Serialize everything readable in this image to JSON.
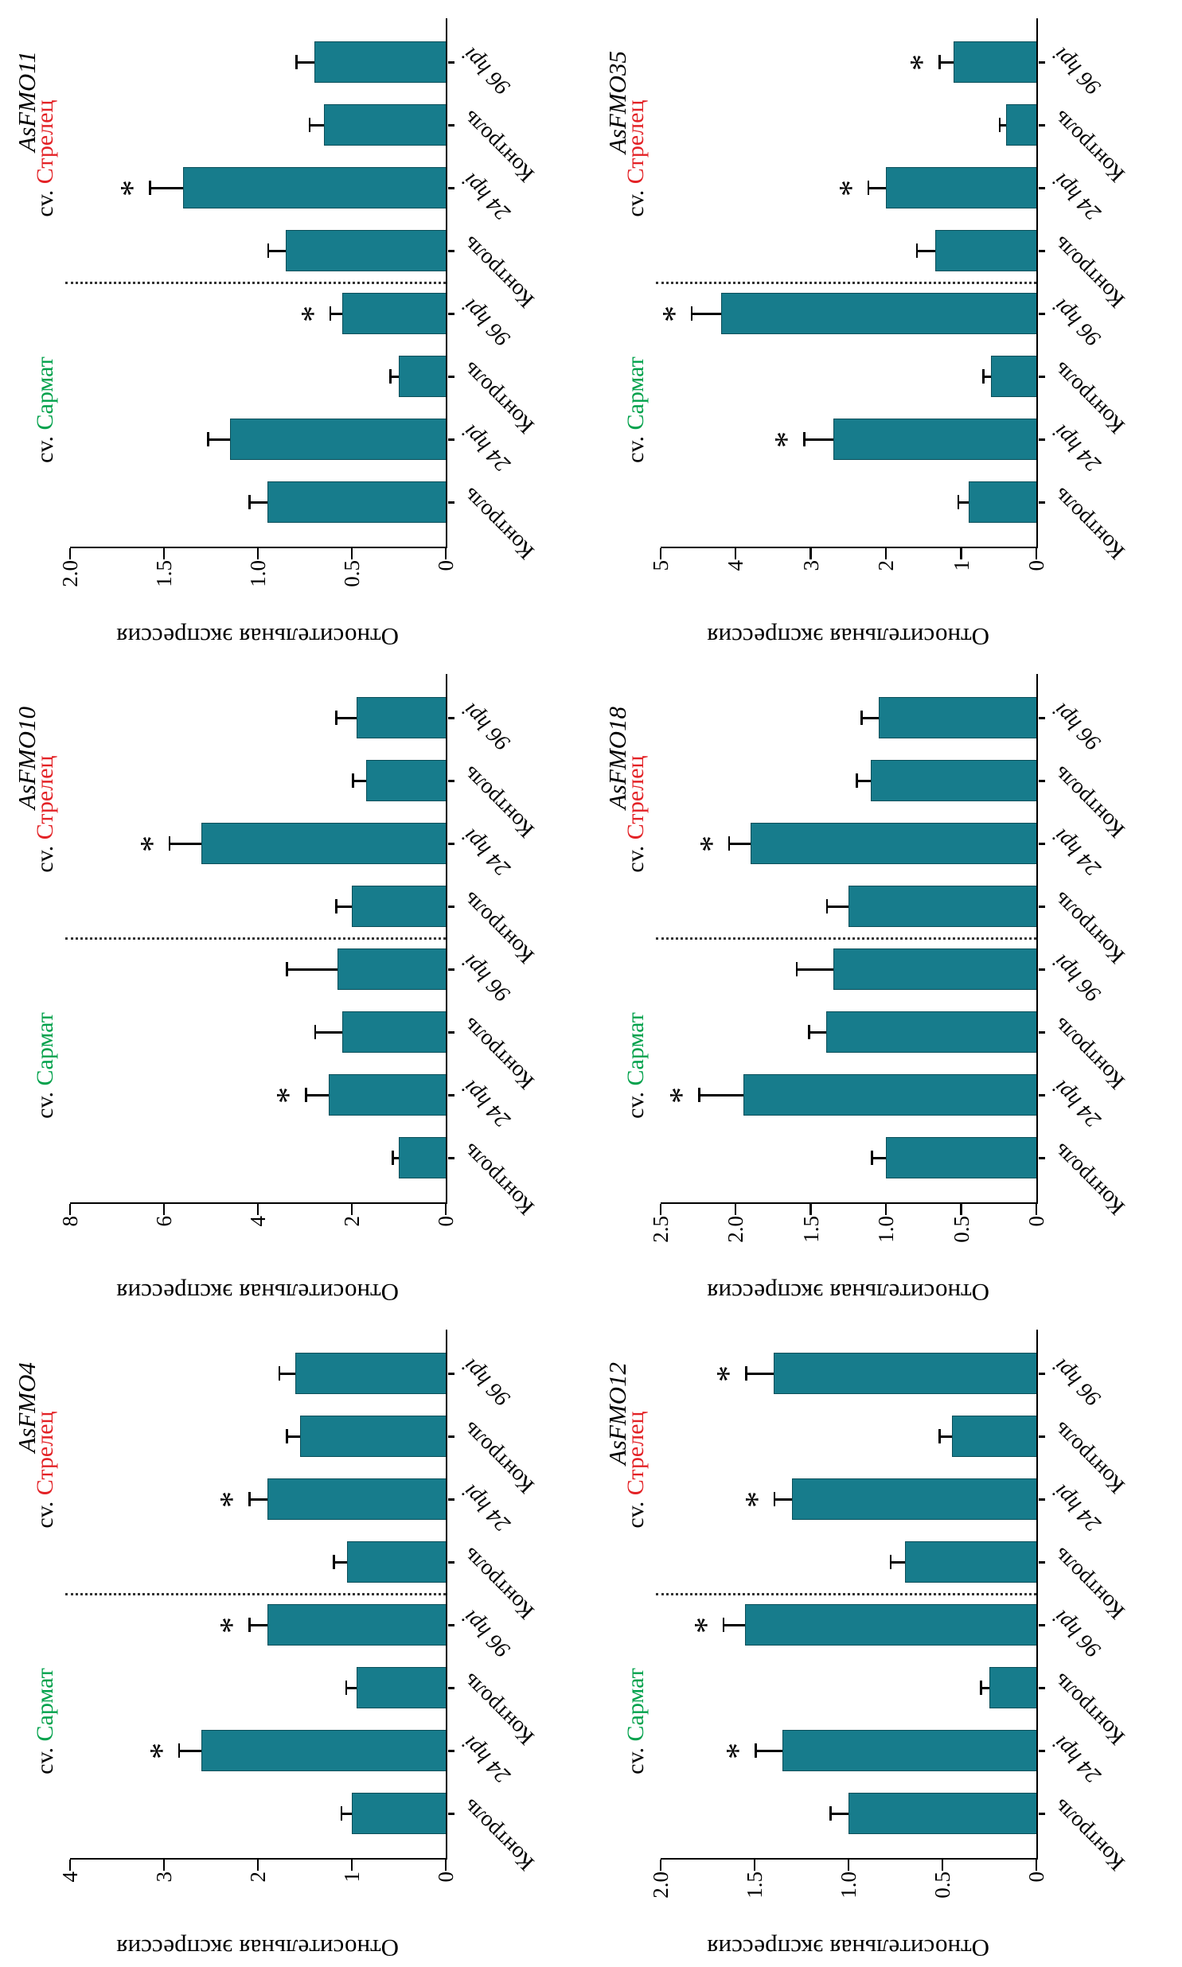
{
  "figure": {
    "sig_marker": "*",
    "bar_color": "#177C8C",
    "bar_border_color": "#0B4F5A",
    "group_label_prefix": "cv. ",
    "cultivar_colors": {
      "Сармат": "#00A14B",
      "Стрелец": "#E32226"
    },
    "y_axis_label": "Относительная экспрессия",
    "category_labels": [
      "Контроль",
      "24 hpi",
      "Контроль",
      "96 hpi"
    ]
  },
  "chart_data": [
    {
      "type": "bar",
      "title": "AsFMO4",
      "ylabel": "Относительная экспрессия",
      "ylim": [
        0,
        4
      ],
      "yticks": [
        "0",
        "1",
        "2",
        "3",
        "4"
      ],
      "legend_position": "above-groups",
      "grid": false,
      "groups": [
        {
          "label": "cv. Сармат",
          "cultivar": "Сармат",
          "label_color": "#00A14B",
          "categories": [
            "Контроль",
            "24 hpi",
            "Контроль",
            "96 hpi"
          ],
          "values": [
            1.0,
            2.6,
            0.95,
            1.9
          ],
          "errors": [
            0.12,
            0.25,
            0.12,
            0.2
          ],
          "significant": [
            false,
            true,
            false,
            true
          ]
        },
        {
          "label": "cv. Стрелец",
          "cultivar": "Стрелец",
          "label_color": "#E32226",
          "categories": [
            "Контроль",
            "24 hpi",
            "Контроль",
            "96 hpi"
          ],
          "values": [
            1.05,
            1.9,
            1.55,
            1.6
          ],
          "errors": [
            0.15,
            0.2,
            0.15,
            0.18
          ],
          "significant": [
            false,
            true,
            false,
            false
          ]
        }
      ]
    },
    {
      "type": "bar",
      "title": "AsFMO10",
      "ylabel": "Относительная экспрессия",
      "ylim": [
        0,
        8
      ],
      "yticks": [
        "0",
        "2",
        "4",
        "6",
        "8"
      ],
      "legend_position": "above-groups",
      "grid": false,
      "groups": [
        {
          "label": "cv. Сармат",
          "cultivar": "Сармат",
          "label_color": "#00A14B",
          "categories": [
            "Контроль",
            "24 hpi",
            "Контроль",
            "96 hpi"
          ],
          "values": [
            1.0,
            2.5,
            2.2,
            2.3
          ],
          "errors": [
            0.15,
            0.5,
            0.6,
            1.1
          ],
          "significant": [
            false,
            true,
            false,
            false
          ]
        },
        {
          "label": "cv. Стрелец",
          "cultivar": "Стрелец",
          "label_color": "#E32226",
          "categories": [
            "Контроль",
            "24 hpi",
            "Контроль",
            "96 hpi"
          ],
          "values": [
            2.0,
            5.2,
            1.7,
            1.9
          ],
          "errors": [
            0.35,
            0.7,
            0.3,
            0.45
          ],
          "significant": [
            false,
            true,
            false,
            false
          ]
        }
      ]
    },
    {
      "type": "bar",
      "title": "AsFMO11",
      "ylabel": "Относительная экспрессия",
      "ylim": [
        0,
        2
      ],
      "yticks": [
        "0",
        "0.5",
        "1.0",
        "1.5",
        "2.0"
      ],
      "legend_position": "above-groups",
      "grid": false,
      "groups": [
        {
          "label": "cv. Сармат",
          "cultivar": "Сармат",
          "label_color": "#00A14B",
          "categories": [
            "Контроль",
            "24 hpi",
            "Контроль",
            "96 hpi"
          ],
          "values": [
            0.95,
            1.15,
            0.25,
            0.55
          ],
          "errors": [
            0.1,
            0.12,
            0.05,
            0.07
          ],
          "significant": [
            false,
            false,
            false,
            true
          ]
        },
        {
          "label": "cv. Стрелец",
          "cultivar": "Стрелец",
          "label_color": "#E32226",
          "categories": [
            "Контроль",
            "24 hpi",
            "Контроль",
            "96 hpi"
          ],
          "values": [
            0.85,
            1.4,
            0.65,
            0.7
          ],
          "errors": [
            0.1,
            0.18,
            0.08,
            0.1
          ],
          "significant": [
            false,
            true,
            false,
            false
          ]
        }
      ]
    },
    {
      "type": "bar",
      "title": "AsFMO12",
      "ylabel": "Относительная экспрессия",
      "ylim": [
        0,
        2
      ],
      "yticks": [
        "0",
        "0.5",
        "1.0",
        "1.5",
        "2.0"
      ],
      "legend_position": "above-groups",
      "grid": false,
      "groups": [
        {
          "label": "cv. Сармат",
          "cultivar": "Сармат",
          "label_color": "#00A14B",
          "categories": [
            "Контроль",
            "24 hpi",
            "Контроль",
            "96 hpi"
          ],
          "values": [
            1.0,
            1.35,
            0.25,
            1.55
          ],
          "errors": [
            0.1,
            0.15,
            0.05,
            0.12
          ],
          "significant": [
            false,
            true,
            false,
            true
          ]
        },
        {
          "label": "cv. Стрелец",
          "cultivar": "Стрелец",
          "label_color": "#E32226",
          "categories": [
            "Контроль",
            "24 hpi",
            "Контроль",
            "96 hpi"
          ],
          "values": [
            0.7,
            1.3,
            0.45,
            1.4
          ],
          "errors": [
            0.08,
            0.1,
            0.07,
            0.15
          ],
          "significant": [
            false,
            true,
            false,
            true
          ]
        }
      ]
    },
    {
      "type": "bar",
      "title": "AsFMO18",
      "ylabel": "Относительная экспрессия",
      "ylim": [
        0,
        2.5
      ],
      "yticks": [
        "0",
        "0.5",
        "1.0",
        "1.5",
        "2.0",
        "2.5"
      ],
      "legend_position": "above-groups",
      "grid": false,
      "groups": [
        {
          "label": "cv. Сармат",
          "cultivar": "Сармат",
          "label_color": "#00A14B",
          "categories": [
            "Контроль",
            "24 hpi",
            "Контроль",
            "96 hpi"
          ],
          "values": [
            1.0,
            1.95,
            1.4,
            1.35
          ],
          "errors": [
            0.1,
            0.3,
            0.12,
            0.25
          ],
          "significant": [
            false,
            true,
            false,
            false
          ]
        },
        {
          "label": "cv. Стрелец",
          "cultivar": "Стрелец",
          "label_color": "#E32226",
          "categories": [
            "Контроль",
            "24 hpi",
            "Контроль",
            "96 hpi"
          ],
          "values": [
            1.25,
            1.9,
            1.1,
            1.05
          ],
          "errors": [
            0.15,
            0.15,
            0.1,
            0.12
          ],
          "significant": [
            false,
            true,
            false,
            false
          ]
        }
      ]
    },
    {
      "type": "bar",
      "title": "AsFMO35",
      "ylabel": "Относительная экспрессия",
      "ylim": [
        0,
        5
      ],
      "yticks": [
        "0",
        "1",
        "2",
        "3",
        "4",
        "5"
      ],
      "legend_position": "above-groups",
      "grid": false,
      "groups": [
        {
          "label": "cv. Сармат",
          "cultivar": "Сармат",
          "label_color": "#00A14B",
          "categories": [
            "Контроль",
            "24 hpi",
            "Контроль",
            "96 hpi"
          ],
          "values": [
            0.9,
            2.7,
            0.6,
            4.2
          ],
          "errors": [
            0.15,
            0.4,
            0.12,
            0.4
          ],
          "significant": [
            false,
            true,
            false,
            true
          ]
        },
        {
          "label": "cv. Стрелец",
          "cultivar": "Стрелец",
          "label_color": "#E32226",
          "categories": [
            "Контроль",
            "24 hpi",
            "Контроль",
            "96 hpi"
          ],
          "values": [
            1.35,
            2.0,
            0.4,
            1.1
          ],
          "errors": [
            0.25,
            0.25,
            0.1,
            0.2
          ],
          "significant": [
            false,
            true,
            false,
            true
          ]
        }
      ]
    }
  ]
}
